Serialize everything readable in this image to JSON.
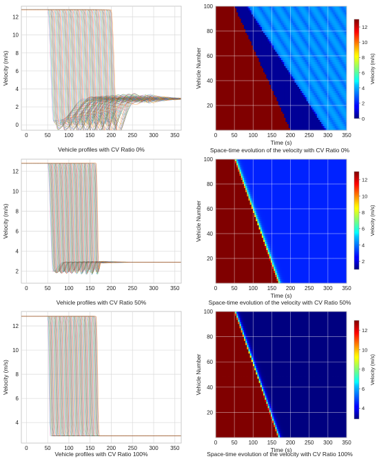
{
  "chart_data": [
    {
      "type": "line",
      "panel": "profiles",
      "caption": "Vehicle profiles with CV Ratio 0%",
      "xlabel": "",
      "ylabel": "Velocity (m/s)",
      "xlim": [
        -12,
        365
      ],
      "ylim": [
        -0.6,
        13.2
      ],
      "xticks": [
        0,
        50,
        100,
        150,
        200,
        250,
        300,
        350
      ],
      "yticks": [
        0,
        2,
        4,
        6,
        8,
        10,
        12
      ],
      "vehicles": 100,
      "v_high": 12.8,
      "v_low": 2.9,
      "t_start_first": 50,
      "t_start_last": 200,
      "t_end_first": 195,
      "t_end_last": 292,
      "dip_min": 0.0,
      "oscillation_amp": 1.6,
      "grid": true
    },
    {
      "type": "heatmap",
      "panel": "spacetime",
      "caption": "Space-time evolution of the velocity with CV Ratio 0%",
      "xlabel": "Time (s)",
      "ylabel": "Vehicle Number",
      "xlim": [
        0,
        350
      ],
      "ylim": [
        0,
        100
      ],
      "xticks": [
        0,
        50,
        100,
        150,
        200,
        250,
        300,
        350
      ],
      "yticks": [
        20,
        40,
        60,
        80,
        100
      ],
      "colorbar_label": "Velocity (m/s)",
      "colorbar_range": [
        0,
        13
      ],
      "colorbar_ticks": [
        0,
        2,
        4,
        6,
        8,
        10,
        12
      ],
      "front_start": 50,
      "front_end": 200,
      "wave": true,
      "grid": true
    },
    {
      "type": "line",
      "panel": "profiles",
      "caption": "Vehicle profiles with CV Ratio 50%",
      "xlabel": "",
      "ylabel": "Velocity (m/s)",
      "xlim": [
        -12,
        365
      ],
      "ylim": [
        0.8,
        13.2
      ],
      "xticks": [
        0,
        50,
        100,
        150,
        200,
        250,
        300,
        350
      ],
      "yticks": [
        2,
        4,
        6,
        8,
        10,
        12
      ],
      "vehicles": 100,
      "v_high": 12.8,
      "v_low": 2.9,
      "t_start_first": 50,
      "t_start_last": 165,
      "t_end_first": 100,
      "t_end_last": 180,
      "dip_min": 1.9,
      "oscillation_amp": 0.3,
      "grid": true
    },
    {
      "type": "heatmap",
      "panel": "spacetime",
      "caption": "Space-time evolution of the velocity with CV Ratio 50%",
      "xlabel": "Time (s)",
      "ylabel": "Vehicle Number",
      "xlim": [
        0,
        350
      ],
      "ylim": [
        0,
        100
      ],
      "xticks": [
        0,
        50,
        100,
        150,
        200,
        250,
        300,
        350
      ],
      "yticks": [
        20,
        40,
        60,
        80,
        100
      ],
      "colorbar_label": "Velocity (m/s)",
      "colorbar_range": [
        1,
        13
      ],
      "colorbar_ticks": [
        2,
        4,
        6,
        8,
        10,
        12
      ],
      "front_start": 50,
      "front_end": 167,
      "wave": false,
      "grid": true
    },
    {
      "type": "line",
      "panel": "profiles",
      "caption": "Vehicle profiles with CV Ratio 100%",
      "xlabel": "",
      "ylabel": "Velocity (m/s)",
      "xlim": [
        -12,
        365
      ],
      "ylim": [
        2.3,
        13.2
      ],
      "xticks": [
        0,
        50,
        100,
        150,
        200,
        250,
        300,
        350
      ],
      "yticks": [
        4,
        6,
        8,
        10,
        12
      ],
      "vehicles": 100,
      "v_high": 12.8,
      "v_low": 2.9,
      "t_start_first": 50,
      "t_start_last": 165,
      "t_end_first": 70,
      "t_end_last": 190,
      "dip_min": 2.9,
      "oscillation_amp": 0.0,
      "grid": true
    },
    {
      "type": "heatmap",
      "panel": "spacetime",
      "caption": "Space-time evolution of the velocity with CV Ratio 100%",
      "xlabel": "Time (s)",
      "ylabel": "Vehicle Number",
      "xlim": [
        0,
        350
      ],
      "ylim": [
        0,
        100
      ],
      "xticks": [
        0,
        50,
        100,
        150,
        200,
        250,
        300,
        350
      ],
      "yticks": [
        20,
        40,
        60,
        80,
        100
      ],
      "colorbar_label": "Velocity (m/s)",
      "colorbar_range": [
        2.9,
        13
      ],
      "colorbar_ticks": [
        4,
        6,
        8,
        10,
        12
      ],
      "front_start": 50,
      "front_end": 167,
      "wave": false,
      "grid": true
    }
  ],
  "colors": {
    "grid": "#d9d9d9",
    "axis": "#bdbdbd",
    "series": [
      "#e377c2",
      "#17becf",
      "#7f7f7f",
      "#bcbd22",
      "#1f77b4",
      "#d62728",
      "#2ca02c",
      "#9467bd",
      "#8c564b",
      "#ff7f0e"
    ]
  }
}
